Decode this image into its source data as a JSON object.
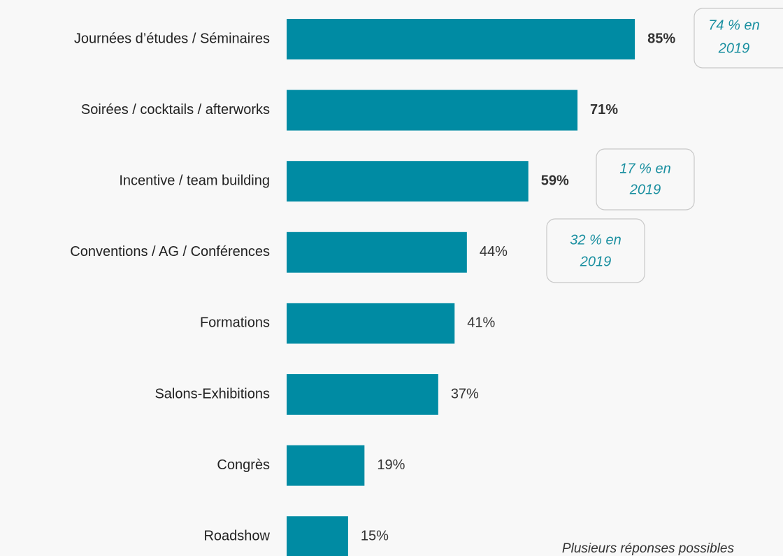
{
  "chart_data": {
    "type": "barh",
    "categories": [
      "Journées d’études / Séminaires",
      "Soirées / cocktails / afterworks",
      "Incentive / team building",
      "Conventions / AG / Conférences",
      "Formations",
      "Salons-Exhibitions",
      "Congrès",
      "Roadshow"
    ],
    "values": [
      85,
      71,
      59,
      44,
      41,
      37,
      19,
      15
    ],
    "value_labels": [
      "85%",
      "71%",
      "59%",
      "44%",
      "41%",
      "37%",
      "19%",
      "15%"
    ],
    "value_label_bold": [
      true,
      true,
      true,
      false,
      false,
      false,
      false,
      false
    ],
    "color": "#008ba3",
    "annotations": [
      {
        "lines": [
          "74 % en",
          "2019"
        ]
      },
      {
        "lines": [
          "17 % en",
          "2019"
        ]
      },
      {
        "lines": [
          "32 % en",
          "2019"
        ]
      }
    ],
    "note": "Plusieurs réponses possibles"
  }
}
